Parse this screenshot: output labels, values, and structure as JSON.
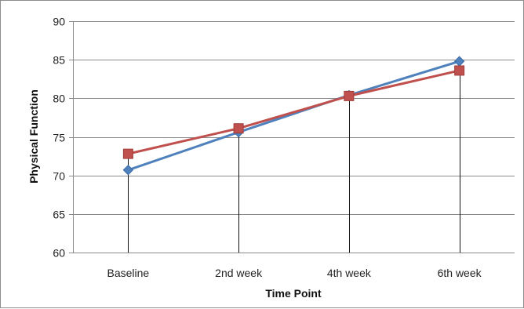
{
  "chart_data": {
    "type": "line",
    "title": "",
    "xlabel": "Time Point",
    "ylabel": "Physical Function",
    "categories": [
      "Baseline",
      "2nd week",
      "4th week",
      "6th week"
    ],
    "ylim": [
      60,
      90
    ],
    "yticks": [
      60,
      65,
      70,
      75,
      80,
      85,
      90
    ],
    "grid": true,
    "legend": "none",
    "series": [
      {
        "values": [
          70.7,
          75.6,
          80.4,
          84.8
        ],
        "color": "#4f81bd",
        "marker": "diamond"
      },
      {
        "values": [
          72.8,
          76.1,
          80.3,
          83.6
        ],
        "color": "#c0504d",
        "marker": "square"
      }
    ]
  }
}
